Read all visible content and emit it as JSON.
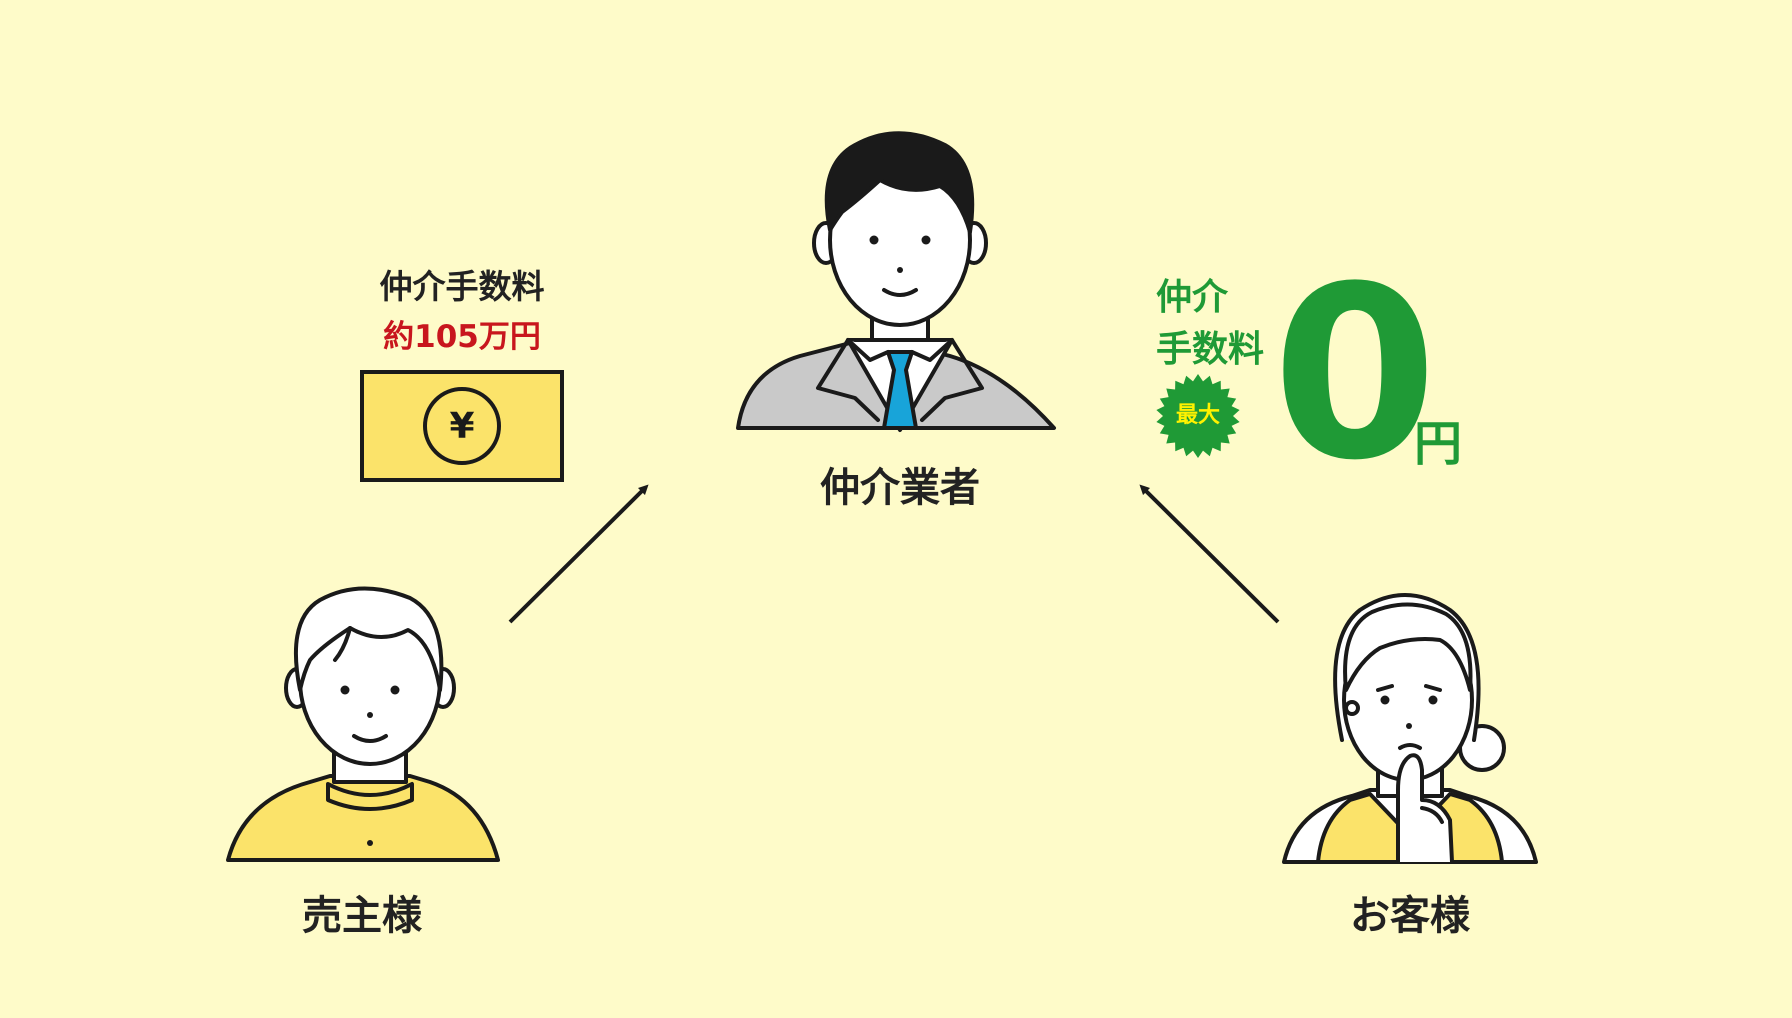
{
  "roles": {
    "broker": "仲介業者",
    "seller": "売主様",
    "customer": "お客様"
  },
  "seller_fee": {
    "title": "仲介手数料",
    "amount": "約105万円",
    "symbol": "¥"
  },
  "customer_fee": {
    "line1": "仲介",
    "line2": "手数料",
    "badge": "最大",
    "value": "0",
    "unit": "円"
  },
  "colors": {
    "background": "#fefbc9",
    "accent_yellow": "#fbe36a",
    "green": "#1f9a36",
    "red": "#c8161d",
    "tie": "#18a4d9",
    "suit": "#bfbfbf",
    "ink": "#1a1a1a"
  },
  "icons": {
    "broker": "businessman-icon",
    "seller": "man-icon",
    "customer": "thinking-woman-icon",
    "money": "banknote-yen-icon",
    "badge": "starburst-badge-icon",
    "arrow": "arrow-up-icon"
  }
}
